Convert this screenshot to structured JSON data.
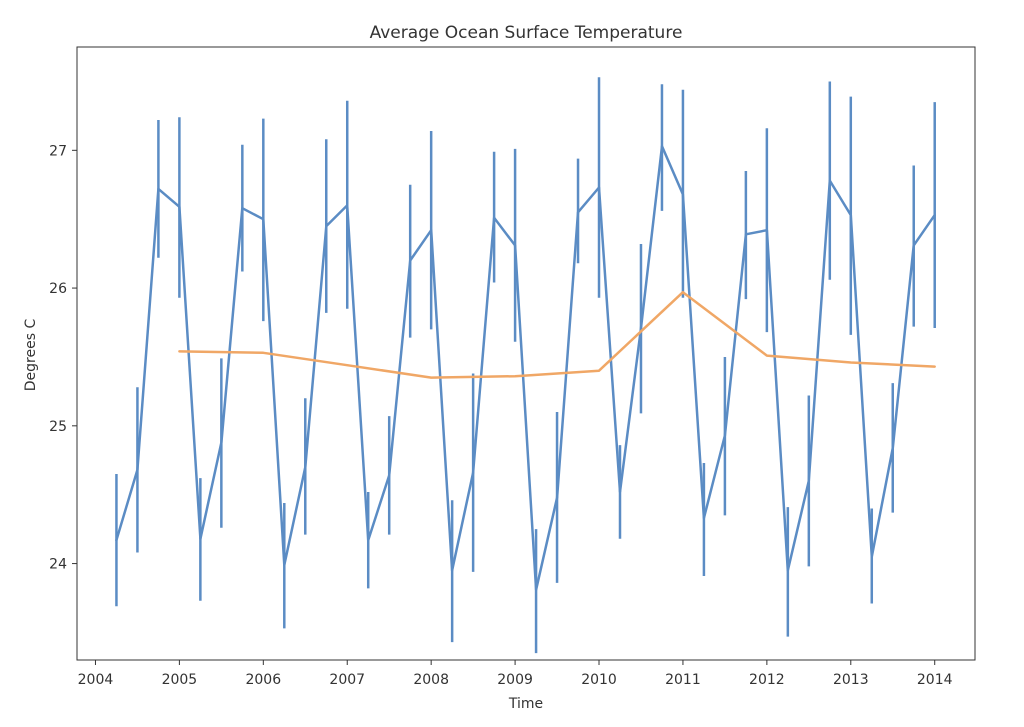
{
  "chart_data": {
    "type": "line",
    "title": "Average Ocean Surface Temperature",
    "xlabel": "Time",
    "ylabel": "Degrees C",
    "xlim": [
      2003.78,
      2014.48
    ],
    "ylim": [
      23.3,
      27.75
    ],
    "xticks": [
      2004,
      2005,
      2006,
      2007,
      2008,
      2009,
      2010,
      2011,
      2012,
      2013,
      2014
    ],
    "yticks": [
      24,
      25,
      26,
      27
    ],
    "grid": false,
    "series": [
      {
        "color": "#5b8cc4",
        "style": "line-with-errorbars",
        "x": [
          2004.25,
          2004.5,
          2004.75,
          2005.0,
          2005.25,
          2005.5,
          2005.75,
          2006.0,
          2006.25,
          2006.5,
          2006.75,
          2007.0,
          2007.25,
          2007.5,
          2007.75,
          2008.0,
          2008.25,
          2008.5,
          2008.75,
          2009.0,
          2009.25,
          2009.5,
          2009.75,
          2010.0,
          2010.25,
          2010.5,
          2010.75,
          2011.0,
          2011.25,
          2011.5,
          2011.75,
          2012.0,
          2012.25,
          2012.5,
          2012.75,
          2013.0,
          2013.25,
          2013.5,
          2013.75,
          2014.0
        ],
        "y": [
          24.17,
          24.68,
          26.72,
          26.59,
          24.18,
          24.88,
          26.58,
          26.5,
          23.99,
          24.7,
          26.45,
          26.6,
          24.17,
          24.64,
          26.2,
          26.42,
          23.95,
          24.66,
          26.51,
          26.31,
          23.81,
          24.48,
          26.55,
          26.73,
          24.52,
          25.71,
          27.03,
          26.68,
          24.33,
          24.93,
          26.39,
          26.42,
          23.95,
          24.6,
          26.78,
          26.53,
          24.05,
          24.84,
          26.31,
          26.53
        ],
        "err_low": [
          23.69,
          24.08,
          26.22,
          25.93,
          23.73,
          24.26,
          26.12,
          25.76,
          23.53,
          24.21,
          25.82,
          25.85,
          23.82,
          24.21,
          25.64,
          25.7,
          23.43,
          23.94,
          26.04,
          25.61,
          23.35,
          23.86,
          26.18,
          25.93,
          24.18,
          25.09,
          26.56,
          25.93,
          23.91,
          24.35,
          25.92,
          25.68,
          23.47,
          23.98,
          26.06,
          25.66,
          23.71,
          24.37,
          25.72,
          25.71
        ],
        "err_high": [
          24.65,
          25.28,
          27.22,
          27.24,
          24.62,
          25.49,
          27.04,
          27.23,
          24.44,
          25.2,
          27.08,
          27.36,
          24.52,
          25.07,
          26.75,
          27.14,
          24.46,
          25.38,
          26.99,
          27.01,
          24.25,
          25.1,
          26.94,
          27.53,
          24.86,
          26.32,
          27.48,
          27.44,
          24.73,
          25.5,
          26.85,
          27.16,
          24.41,
          25.22,
          27.5,
          27.39,
          24.4,
          25.31,
          26.89,
          27.35
        ]
      },
      {
        "color": "#f0a766",
        "style": "line",
        "x": [
          2005,
          2006,
          2007,
          2008,
          2009,
          2010,
          2011,
          2012,
          2013,
          2014
        ],
        "y": [
          25.54,
          25.53,
          25.44,
          25.35,
          25.36,
          25.4,
          25.97,
          25.51,
          25.46,
          25.43
        ]
      }
    ]
  }
}
